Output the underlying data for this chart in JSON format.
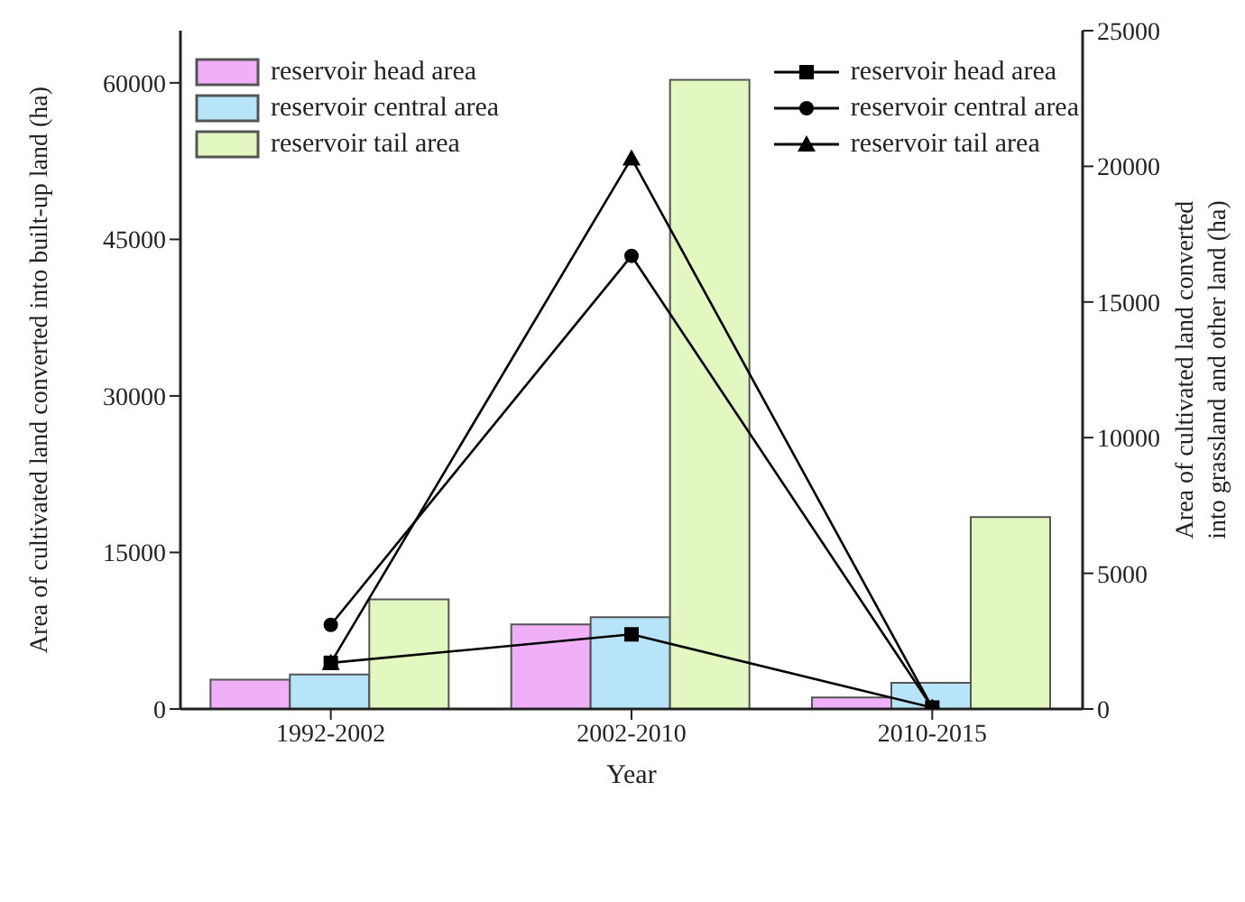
{
  "chart_data": {
    "type": "bar",
    "xlabel": "Year",
    "ylabel": "Area of cultivated land converted into built-up land (ha)",
    "y2label": "Area of cultivated land converted into grassland and other land (ha)",
    "categories": [
      "1992-2002",
      "2002-2010",
      "2010-2015"
    ],
    "series": [
      {
        "name": "reservoir head area",
        "color": "#f0b0f8",
        "values": [
          2800,
          8100,
          1100
        ]
      },
      {
        "name": "reservoir central area",
        "color": "#b8e4fa",
        "values": [
          3300,
          8800,
          2500
        ]
      },
      {
        "name": "reservoir tail area",
        "color": "#e2f8c0",
        "values": [
          10500,
          60300,
          18400
        ]
      },
      {
        "name": "reservoir head area",
        "type": "line",
        "axis": "y2",
        "color": "#000000",
        "marker": "square",
        "values": [
          1700,
          2750,
          50
        ]
      },
      {
        "name": "reservoir central area",
        "type": "line",
        "axis": "y2",
        "color": "#000000",
        "marker": "circle",
        "values": [
          3100,
          16700,
          50
        ]
      },
      {
        "name": "reservoir tail area",
        "type": "line",
        "axis": "y2",
        "color": "#000000",
        "marker": "triangle",
        "values": [
          1700,
          20300,
          50
        ]
      }
    ],
    "ylim": [
      0,
      65000
    ],
    "yticks": [
      0,
      15000,
      30000,
      45000,
      60000
    ],
    "y2lim": [
      0,
      25000
    ],
    "y2ticks": [
      0,
      5000,
      10000,
      15000,
      20000,
      25000
    ],
    "legend": "top"
  }
}
